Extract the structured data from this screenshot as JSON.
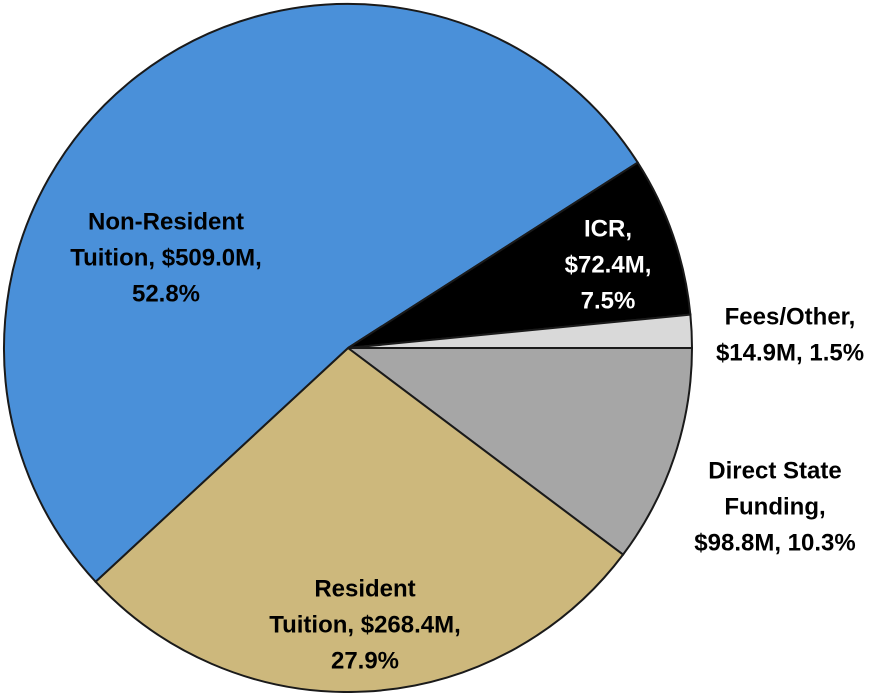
{
  "chart_data": {
    "type": "pie",
    "labels": [
      [
        "Direct State",
        "Funding,",
        "$98.8M, 10.3%"
      ],
      [
        "Resident",
        "Tuition, $268.4M,",
        "27.9%"
      ],
      [
        "Non-Resident",
        "Tuition, $509.0M,",
        "52.8%"
      ],
      [
        "ICR,",
        "$72.4M,",
        "7.5%"
      ],
      [
        "Fees/Other,",
        "$14.9M, 1.5%"
      ]
    ],
    "values": [
      98.8,
      268.4,
      509.0,
      72.4,
      14.9
    ],
    "colors": [
      "#a6a6a6",
      "#cdb87c",
      "#4a90d9",
      "#000000",
      "#d9d9d9"
    ]
  }
}
